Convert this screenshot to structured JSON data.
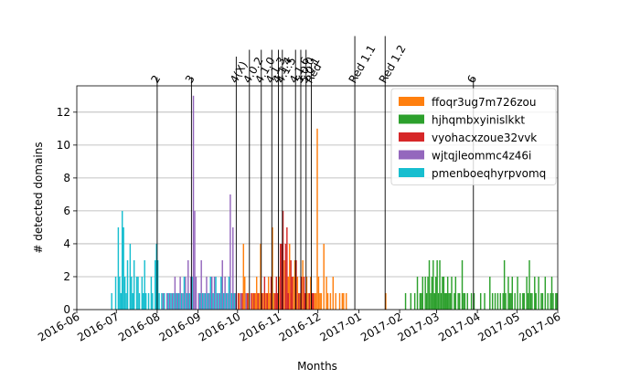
{
  "chart_data": {
    "type": "bar",
    "xlabel": "Months",
    "ylabel": "# detected domains",
    "ylim": [
      0,
      13.6
    ],
    "xlim": [
      "2016-06-01",
      "2017-06-01"
    ],
    "grid": "horizontal",
    "legend_placement": "top-right",
    "y_ticks": [
      0,
      2,
      4,
      6,
      8,
      10,
      12
    ],
    "x_ticks": [
      "2016-06",
      "2016-07",
      "2016-08",
      "2016-09",
      "2016-10",
      "2016-11",
      "2016-12",
      "2017-01",
      "2017-02",
      "2017-03",
      "2017-04",
      "2017-05",
      "2017-06"
    ],
    "events": [
      {
        "date": "2016-08-01",
        "label": "2"
      },
      {
        "date": "2016-08-27",
        "label": "3"
      },
      {
        "date": "2016-09-30",
        "label": "4(X)"
      },
      {
        "date": "2016-10-10",
        "label": "4.0.2"
      },
      {
        "date": "2016-10-19",
        "label": "4.1.0"
      },
      {
        "date": "2016-10-27",
        "label": "4.1.3"
      },
      {
        "date": "2016-11-01",
        "label": "4.1.4"
      },
      {
        "date": "2016-11-04",
        "label": "4.1.5"
      },
      {
        "date": "2016-11-14",
        "label": "4.1.6"
      },
      {
        "date": "2016-11-18",
        "label": "5.0.0"
      },
      {
        "date": "2016-11-22",
        "label": "5.0.1"
      },
      {
        "date": "2016-11-26",
        "label": "Red"
      },
      {
        "date": "2016-12-29",
        "label": "Red 1.1"
      },
      {
        "date": "2017-01-21",
        "label": "Red 1.2"
      },
      {
        "date": "2017-03-29",
        "label": "6"
      }
    ],
    "series": [
      {
        "name": "ffoqr3ug7m726zou",
        "color": "#ff7f0e",
        "points": [
          [
            "2016-10-02",
            1
          ],
          [
            "2016-10-05",
            4
          ],
          [
            "2016-10-06",
            2
          ],
          [
            "2016-10-07",
            1
          ],
          [
            "2016-10-09",
            1
          ],
          [
            "2016-10-12",
            1
          ],
          [
            "2016-10-14",
            1
          ],
          [
            "2016-10-15",
            2
          ],
          [
            "2016-10-17",
            1
          ],
          [
            "2016-10-18",
            4
          ],
          [
            "2016-10-20",
            1
          ],
          [
            "2016-10-22",
            1
          ],
          [
            "2016-10-24",
            2
          ],
          [
            "2016-10-25",
            1
          ],
          [
            "2016-10-26",
            1
          ],
          [
            "2016-10-27",
            5
          ],
          [
            "2016-10-28",
            1
          ],
          [
            "2016-11-01",
            2
          ],
          [
            "2016-11-03",
            1
          ],
          [
            "2016-11-05",
            3
          ],
          [
            "2016-11-08",
            2
          ],
          [
            "2016-11-09",
            4
          ],
          [
            "2016-11-10",
            1
          ],
          [
            "2016-11-12",
            2
          ],
          [
            "2016-11-13",
            3
          ],
          [
            "2016-11-15",
            2
          ],
          [
            "2016-11-17",
            1
          ],
          [
            "2016-11-19",
            3
          ],
          [
            "2016-11-20",
            1
          ],
          [
            "2016-11-22",
            2
          ],
          [
            "2016-11-23",
            1
          ],
          [
            "2016-11-25",
            2
          ],
          [
            "2016-11-28",
            1
          ],
          [
            "2016-11-29",
            1
          ],
          [
            "2016-11-30",
            11
          ],
          [
            "2016-12-01",
            2
          ],
          [
            "2016-12-02",
            1
          ],
          [
            "2016-12-03",
            1
          ],
          [
            "2016-12-05",
            4
          ],
          [
            "2016-12-07",
            2
          ],
          [
            "2016-12-08",
            1
          ],
          [
            "2016-12-10",
            1
          ],
          [
            "2016-12-12",
            2
          ],
          [
            "2016-12-14",
            1
          ],
          [
            "2016-12-17",
            1
          ],
          [
            "2016-12-19",
            1
          ],
          [
            "2016-12-20",
            1
          ],
          [
            "2016-12-22",
            1
          ],
          [
            "2017-01-21",
            1
          ]
        ]
      },
      {
        "name": "hjhqmbxyinislkkt",
        "color": "#2ca02c",
        "points": [
          [
            "2017-02-05",
            1
          ],
          [
            "2017-02-09",
            1
          ],
          [
            "2017-02-12",
            1
          ],
          [
            "2017-02-14",
            2
          ],
          [
            "2017-02-16",
            1
          ],
          [
            "2017-02-17",
            1
          ],
          [
            "2017-02-18",
            2
          ],
          [
            "2017-02-20",
            2
          ],
          [
            "2017-02-21",
            1
          ],
          [
            "2017-02-22",
            2
          ],
          [
            "2017-02-23",
            3
          ],
          [
            "2017-02-24",
            1
          ],
          [
            "2017-02-25",
            2
          ],
          [
            "2017-02-26",
            3
          ],
          [
            "2017-02-27",
            1
          ],
          [
            "2017-02-28",
            2
          ],
          [
            "2017-03-01",
            3
          ],
          [
            "2017-03-02",
            1
          ],
          [
            "2017-03-03",
            3
          ],
          [
            "2017-03-04",
            1
          ],
          [
            "2017-03-05",
            2
          ],
          [
            "2017-03-06",
            2
          ],
          [
            "2017-03-07",
            1
          ],
          [
            "2017-03-08",
            1
          ],
          [
            "2017-03-09",
            2
          ],
          [
            "2017-03-10",
            1
          ],
          [
            "2017-03-11",
            1
          ],
          [
            "2017-03-12",
            2
          ],
          [
            "2017-03-14",
            1
          ],
          [
            "2017-03-15",
            2
          ],
          [
            "2017-03-17",
            1
          ],
          [
            "2017-03-18",
            1
          ],
          [
            "2017-03-20",
            3
          ],
          [
            "2017-03-21",
            1
          ],
          [
            "2017-03-22",
            1
          ],
          [
            "2017-03-24",
            1
          ],
          [
            "2017-03-27",
            1
          ],
          [
            "2017-03-29",
            1
          ],
          [
            "2017-04-03",
            1
          ],
          [
            "2017-04-06",
            1
          ],
          [
            "2017-04-10",
            2
          ],
          [
            "2017-04-12",
            1
          ],
          [
            "2017-04-14",
            1
          ],
          [
            "2017-04-16",
            1
          ],
          [
            "2017-04-18",
            1
          ],
          [
            "2017-04-20",
            1
          ],
          [
            "2017-04-21",
            3
          ],
          [
            "2017-04-22",
            1
          ],
          [
            "2017-04-24",
            2
          ],
          [
            "2017-04-25",
            1
          ],
          [
            "2017-04-26",
            1
          ],
          [
            "2017-04-27",
            2
          ],
          [
            "2017-04-29",
            1
          ],
          [
            "2017-05-01",
            2
          ],
          [
            "2017-05-03",
            1
          ],
          [
            "2017-05-05",
            1
          ],
          [
            "2017-05-06",
            1
          ],
          [
            "2017-05-08",
            2
          ],
          [
            "2017-05-09",
            1
          ],
          [
            "2017-05-10",
            3
          ],
          [
            "2017-05-11",
            1
          ],
          [
            "2017-05-12",
            1
          ],
          [
            "2017-05-14",
            2
          ],
          [
            "2017-05-15",
            1
          ],
          [
            "2017-05-17",
            2
          ],
          [
            "2017-05-19",
            1
          ],
          [
            "2017-05-20",
            1
          ],
          [
            "2017-05-22",
            2
          ],
          [
            "2017-05-24",
            1
          ],
          [
            "2017-05-26",
            1
          ],
          [
            "2017-05-27",
            2
          ],
          [
            "2017-05-28",
            1
          ],
          [
            "2017-05-30",
            1
          ],
          [
            "2017-05-31",
            1
          ]
        ]
      },
      {
        "name": "vyohacxzoue32vvk",
        "color": "#d62728",
        "points": [
          [
            "2016-10-01",
            1
          ],
          [
            "2016-10-04",
            1
          ],
          [
            "2016-10-08",
            1
          ],
          [
            "2016-10-11",
            1
          ],
          [
            "2016-10-13",
            1
          ],
          [
            "2016-10-16",
            1
          ],
          [
            "2016-10-19",
            1
          ],
          [
            "2016-10-21",
            2
          ],
          [
            "2016-10-23",
            1
          ],
          [
            "2016-10-26",
            2
          ],
          [
            "2016-10-29",
            1
          ],
          [
            "2016-10-30",
            2
          ],
          [
            "2016-10-31",
            1
          ],
          [
            "2016-11-02",
            4
          ],
          [
            "2016-11-03",
            4
          ],
          [
            "2016-11-04",
            6
          ],
          [
            "2016-11-06",
            4
          ],
          [
            "2016-11-07",
            5
          ],
          [
            "2016-11-08",
            1
          ],
          [
            "2016-11-10",
            3
          ],
          [
            "2016-11-11",
            2
          ],
          [
            "2016-11-14",
            3
          ],
          [
            "2016-11-16",
            1
          ],
          [
            "2016-11-18",
            2
          ],
          [
            "2016-11-20",
            2
          ],
          [
            "2016-11-21",
            1
          ],
          [
            "2016-11-24",
            1
          ],
          [
            "2016-11-26",
            1
          ],
          [
            "2016-11-27",
            1
          ]
        ]
      },
      {
        "name": "wjtqjleommc4z46i",
        "color": "#9467bd",
        "points": [
          [
            "2016-08-05",
            1
          ],
          [
            "2016-08-08",
            1
          ],
          [
            "2016-08-10",
            1
          ],
          [
            "2016-08-12",
            1
          ],
          [
            "2016-08-14",
            2
          ],
          [
            "2016-08-16",
            1
          ],
          [
            "2016-08-18",
            2
          ],
          [
            "2016-08-20",
            1
          ],
          [
            "2016-08-22",
            2
          ],
          [
            "2016-08-24",
            3
          ],
          [
            "2016-08-26",
            2
          ],
          [
            "2016-08-28",
            13
          ],
          [
            "2016-08-29",
            6
          ],
          [
            "2016-08-30",
            2
          ],
          [
            "2016-09-01",
            1
          ],
          [
            "2016-09-03",
            3
          ],
          [
            "2016-09-05",
            1
          ],
          [
            "2016-09-07",
            2
          ],
          [
            "2016-09-09",
            1
          ],
          [
            "2016-09-11",
            2
          ],
          [
            "2016-09-13",
            2
          ],
          [
            "2016-09-15",
            1
          ],
          [
            "2016-09-17",
            1
          ],
          [
            "2016-09-19",
            3
          ],
          [
            "2016-09-21",
            2
          ],
          [
            "2016-09-23",
            1
          ],
          [
            "2016-09-25",
            7
          ],
          [
            "2016-09-27",
            5
          ],
          [
            "2016-09-29",
            1
          ],
          [
            "2016-10-03",
            1
          ],
          [
            "2016-10-07",
            1
          ]
        ]
      },
      {
        "name": "pmenboeqhyrpvomq",
        "color": "#17becf",
        "points": [
          [
            "2016-06-27",
            1
          ],
          [
            "2016-06-30",
            2
          ],
          [
            "2016-07-02",
            5
          ],
          [
            "2016-07-03",
            2
          ],
          [
            "2016-07-04",
            1
          ],
          [
            "2016-07-05",
            6
          ],
          [
            "2016-07-06",
            5
          ],
          [
            "2016-07-07",
            2
          ],
          [
            "2016-07-08",
            1
          ],
          [
            "2016-07-09",
            3
          ],
          [
            "2016-07-11",
            4
          ],
          [
            "2016-07-12",
            2
          ],
          [
            "2016-07-13",
            1
          ],
          [
            "2016-07-14",
            3
          ],
          [
            "2016-07-16",
            2
          ],
          [
            "2016-07-17",
            2
          ],
          [
            "2016-07-18",
            1
          ],
          [
            "2016-07-20",
            2
          ],
          [
            "2016-07-21",
            1
          ],
          [
            "2016-07-22",
            3
          ],
          [
            "2016-07-23",
            1
          ],
          [
            "2016-07-25",
            1
          ],
          [
            "2016-07-27",
            2
          ],
          [
            "2016-07-28",
            1
          ],
          [
            "2016-07-30",
            3
          ],
          [
            "2016-07-31",
            4
          ],
          [
            "2016-08-01",
            3
          ],
          [
            "2016-08-02",
            1
          ],
          [
            "2016-08-04",
            1
          ],
          [
            "2016-08-06",
            1
          ],
          [
            "2016-08-09",
            1
          ],
          [
            "2016-08-11",
            1
          ],
          [
            "2016-08-13",
            1
          ],
          [
            "2016-08-15",
            1
          ],
          [
            "2016-08-17",
            1
          ],
          [
            "2016-08-19",
            1
          ],
          [
            "2016-08-21",
            2
          ],
          [
            "2016-08-23",
            1
          ],
          [
            "2016-08-25",
            1
          ],
          [
            "2016-08-27",
            2
          ],
          [
            "2016-09-02",
            1
          ],
          [
            "2016-09-04",
            1
          ],
          [
            "2016-09-06",
            1
          ],
          [
            "2016-09-08",
            1
          ],
          [
            "2016-09-10",
            2
          ],
          [
            "2016-09-12",
            1
          ],
          [
            "2016-09-14",
            2
          ],
          [
            "2016-09-16",
            1
          ],
          [
            "2016-09-18",
            2
          ],
          [
            "2016-09-20",
            1
          ],
          [
            "2016-09-22",
            1
          ],
          [
            "2016-09-24",
            2
          ],
          [
            "2016-09-26",
            1
          ],
          [
            "2016-09-28",
            1
          ]
        ]
      }
    ]
  }
}
